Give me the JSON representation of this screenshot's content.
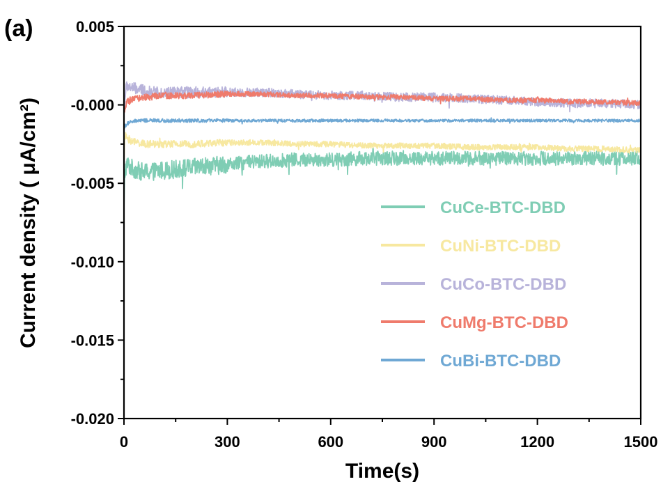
{
  "chart_data": {
    "type": "line",
    "panel_label": "(a)",
    "xlabel": "Time(s)",
    "ylabel": "Current density ( μA/cm²)",
    "xlim": [
      0,
      1500
    ],
    "ylim": [
      -0.02,
      0.005
    ],
    "x_ticks": [
      0,
      300,
      600,
      900,
      1200,
      1500
    ],
    "x_tick_labels": [
      "0",
      "300",
      "600",
      "900",
      "1200",
      "1500"
    ],
    "y_ticks": [
      0.005,
      0.0,
      -0.005,
      -0.01,
      -0.015,
      -0.02
    ],
    "y_tick_labels": [
      "0.005",
      "-0.000",
      "-0.005",
      "-0.010",
      "-0.015",
      "-0.020"
    ],
    "legend_position": "lower-right",
    "series": [
      {
        "name": "CuCe-BTC-DBD",
        "color": "#7fcdb4",
        "x": [
          0,
          2,
          5,
          10,
          20,
          40,
          60,
          100,
          150,
          200,
          300,
          400,
          500,
          600,
          700,
          800,
          900,
          1000,
          1100,
          1200,
          1300,
          1400,
          1500
        ],
        "y": [
          -0.007,
          -0.0045,
          -0.004,
          -0.0038,
          -0.004,
          -0.0042,
          -0.0043,
          -0.0042,
          -0.0041,
          -0.004,
          -0.0038,
          -0.0036,
          -0.0035,
          -0.0035,
          -0.0034,
          -0.0034,
          -0.0034,
          -0.0034,
          -0.0034,
          -0.0034,
          -0.0034,
          -0.0034,
          -0.0034
        ],
        "noise": 0.00045
      },
      {
        "name": "CuNi-BTC-DBD",
        "color": "#f7e8a0",
        "x": [
          0,
          2,
          5,
          10,
          20,
          40,
          60,
          100,
          200,
          300,
          400,
          500,
          600,
          700,
          800,
          900,
          1000,
          1100,
          1200,
          1300,
          1400,
          1500
        ],
        "y": [
          -0.004,
          -0.0022,
          -0.002,
          -0.0021,
          -0.0023,
          -0.0024,
          -0.0025,
          -0.0025,
          -0.0025,
          -0.0024,
          -0.0024,
          -0.0025,
          -0.0025,
          -0.0026,
          -0.0026,
          -0.0026,
          -0.0027,
          -0.0027,
          -0.0027,
          -0.0028,
          -0.0028,
          -0.0029
        ],
        "noise": 0.00018
      },
      {
        "name": "CuCo-BTC-DBD",
        "color": "#b8b3da",
        "x": [
          0,
          5,
          10,
          20,
          40,
          60,
          80,
          100,
          200,
          300,
          400,
          500,
          600,
          700,
          800,
          900,
          1000,
          1100,
          1200,
          1300,
          1400,
          1500
        ],
        "y": [
          -0.0005,
          0.001,
          0.0012,
          0.0011,
          0.001,
          0.0009,
          0.0008,
          0.0008,
          0.0008,
          0.0008,
          0.0008,
          0.0007,
          0.0006,
          0.0006,
          0.0005,
          0.0005,
          0.0004,
          0.0003,
          0.0002,
          0.0001,
          0.0001,
          0.0
        ],
        "noise": 0.00028
      },
      {
        "name": "CuMg-BTC-DBD",
        "color": "#ef7b6c",
        "x": [
          0,
          5,
          10,
          20,
          40,
          60,
          80,
          100,
          200,
          300,
          400,
          500,
          600,
          700,
          800,
          900,
          1000,
          1100,
          1200,
          1300,
          1400,
          1500
        ],
        "y": [
          -0.0005,
          -0.0001,
          0.0002,
          0.0003,
          0.0004,
          0.0005,
          0.0005,
          0.0006,
          0.0006,
          0.0007,
          0.0007,
          0.0006,
          0.0006,
          0.0005,
          0.0005,
          0.0004,
          0.0004,
          0.0003,
          0.0003,
          0.0002,
          0.0002,
          0.0001
        ],
        "noise": 0.00016
      },
      {
        "name": "CuBi-BTC-DBD",
        "color": "#6fa8d4",
        "x": [
          0,
          5,
          10,
          20,
          40,
          60,
          80,
          100,
          200,
          300,
          400,
          500,
          600,
          700,
          800,
          900,
          1000,
          1100,
          1200,
          1300,
          1400,
          1500
        ],
        "y": [
          -0.0015,
          -0.0013,
          -0.0012,
          -0.0011,
          -0.001,
          -0.001,
          -0.001,
          -0.001,
          -0.001,
          -0.001,
          -0.001,
          -0.001,
          -0.001,
          -0.001,
          -0.001,
          -0.001,
          -0.001,
          -0.001,
          -0.001,
          -0.001,
          -0.001,
          -0.001
        ],
        "noise": 9e-05
      }
    ]
  }
}
